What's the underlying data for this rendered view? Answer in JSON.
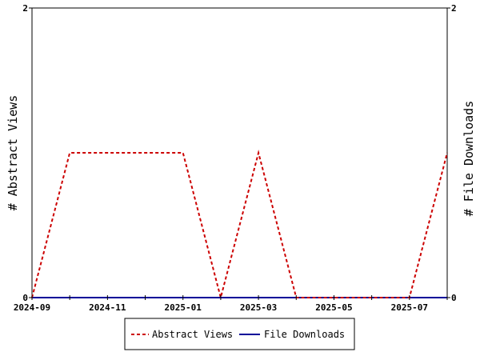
{
  "chart_data": {
    "type": "line",
    "x": [
      "2024-09",
      "2024-10",
      "2024-11",
      "2024-12",
      "2025-01",
      "2025-02",
      "2025-03",
      "2025-04",
      "2025-05",
      "2025-06",
      "2025-07",
      "2025-08"
    ],
    "x_tick_labels": [
      "2024-09",
      "2024-11",
      "2025-01",
      "2025-03",
      "2025-05",
      "2025-07"
    ],
    "ylabel_left": "# Abstract Views",
    "ylabel_right": "# File Downloads",
    "ylim_left": [
      0,
      2
    ],
    "ylim_right": [
      0,
      2
    ],
    "y_tick_labels_left": [
      "0",
      "2"
    ],
    "y_tick_labels_right": [
      "0",
      "2"
    ],
    "grid": false,
    "legend_position": "bottom",
    "series": [
      {
        "name": "Abstract Views",
        "axis": "left",
        "color": "#cc0000",
        "style": "dashed",
        "values": [
          0,
          1,
          1,
          1,
          1,
          0,
          1,
          0,
          0,
          0,
          0,
          1
        ]
      },
      {
        "name": "File Downloads",
        "axis": "right",
        "color": "#000099",
        "style": "solid",
        "values": [
          0,
          0,
          0,
          0,
          0,
          0,
          0,
          0,
          0,
          0,
          0,
          0
        ]
      }
    ]
  }
}
